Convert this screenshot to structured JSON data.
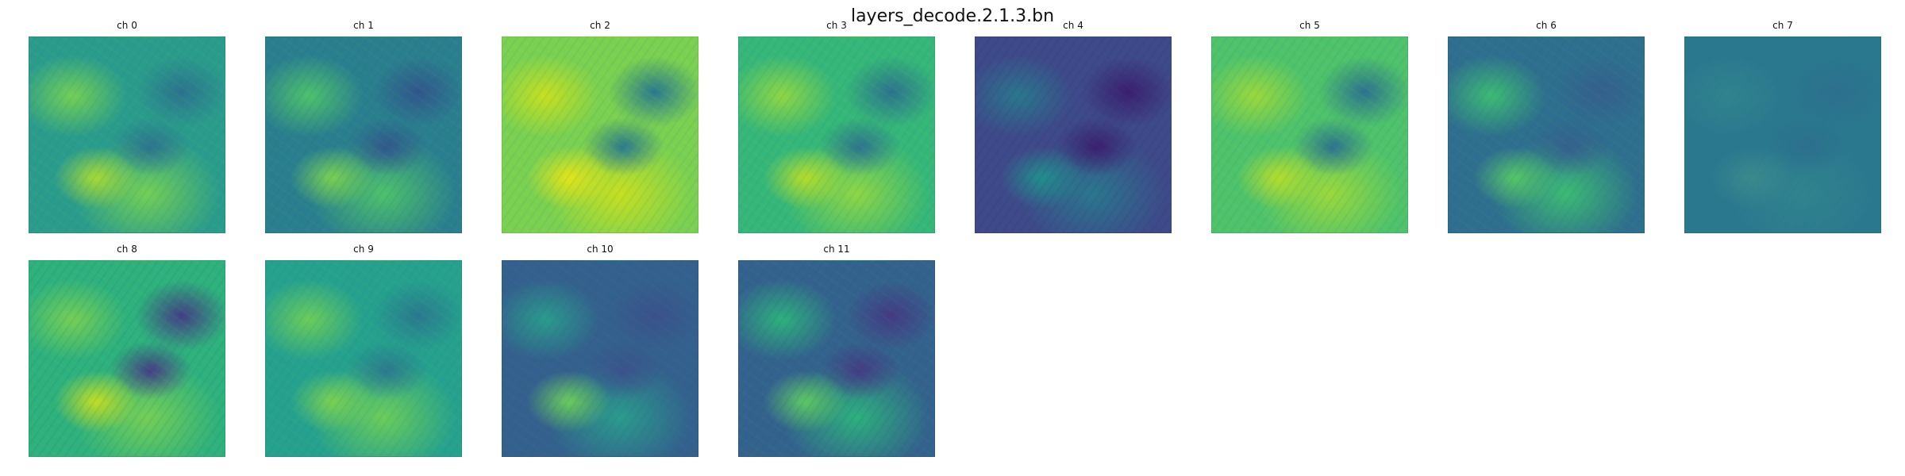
{
  "figure": {
    "title": "layers_decode.2.1.3.bn"
  },
  "panels": [
    {
      "label": "ch 0",
      "colors": {
        "base": "#2a9c8c",
        "hi": "#74d055",
        "lo": "#2c728e",
        "accent": "#a7db35"
      }
    },
    {
      "label": "ch 1",
      "colors": {
        "base": "#2a7f8e",
        "hi": "#4ec36b",
        "lo": "#31568c",
        "accent": "#7ad151"
      }
    },
    {
      "label": "ch 2",
      "colors": {
        "base": "#7ad151",
        "hi": "#c7e020",
        "lo": "#2a788e",
        "accent": "#e3e418"
      }
    },
    {
      "label": "ch 3",
      "colors": {
        "base": "#35b779",
        "hi": "#8fd744",
        "lo": "#2c728e",
        "accent": "#b5de2b"
      }
    },
    {
      "label": "ch 4",
      "colors": {
        "base": "#3e4a89",
        "hi": "#2a788e",
        "lo": "#3b1f6f",
        "accent": "#21908d"
      }
    },
    {
      "label": "ch 5",
      "colors": {
        "base": "#4ec36b",
        "hi": "#9bd93c",
        "lo": "#2c728e",
        "accent": "#b5de2b"
      }
    },
    {
      "label": "ch 6",
      "colors": {
        "base": "#2e6e8e",
        "hi": "#3dbc74",
        "lo": "#355f8d",
        "accent": "#56c667"
      }
    },
    {
      "label": "ch 7",
      "colors": {
        "base": "#2a788e",
        "hi": "#31848e",
        "lo": "#2d6f8e",
        "accent": "#3b8a8d"
      }
    },
    {
      "label": "ch 8",
      "colors": {
        "base": "#2db27d",
        "hi": "#74d055",
        "lo": "#433e85",
        "accent": "#c2df23"
      }
    },
    {
      "label": "ch 9",
      "colors": {
        "base": "#25a18e",
        "hi": "#6ccd5a",
        "lo": "#2a788e",
        "accent": "#7ad151"
      }
    },
    {
      "label": "ch 10",
      "colors": {
        "base": "#34608d",
        "hi": "#2a9c8c",
        "lo": "#3b528b",
        "accent": "#6ccd5a"
      }
    },
    {
      "label": "ch 11",
      "colors": {
        "base": "#33638d",
        "hi": "#2db27d",
        "lo": "#443a83",
        "accent": "#5ec962"
      }
    }
  ]
}
